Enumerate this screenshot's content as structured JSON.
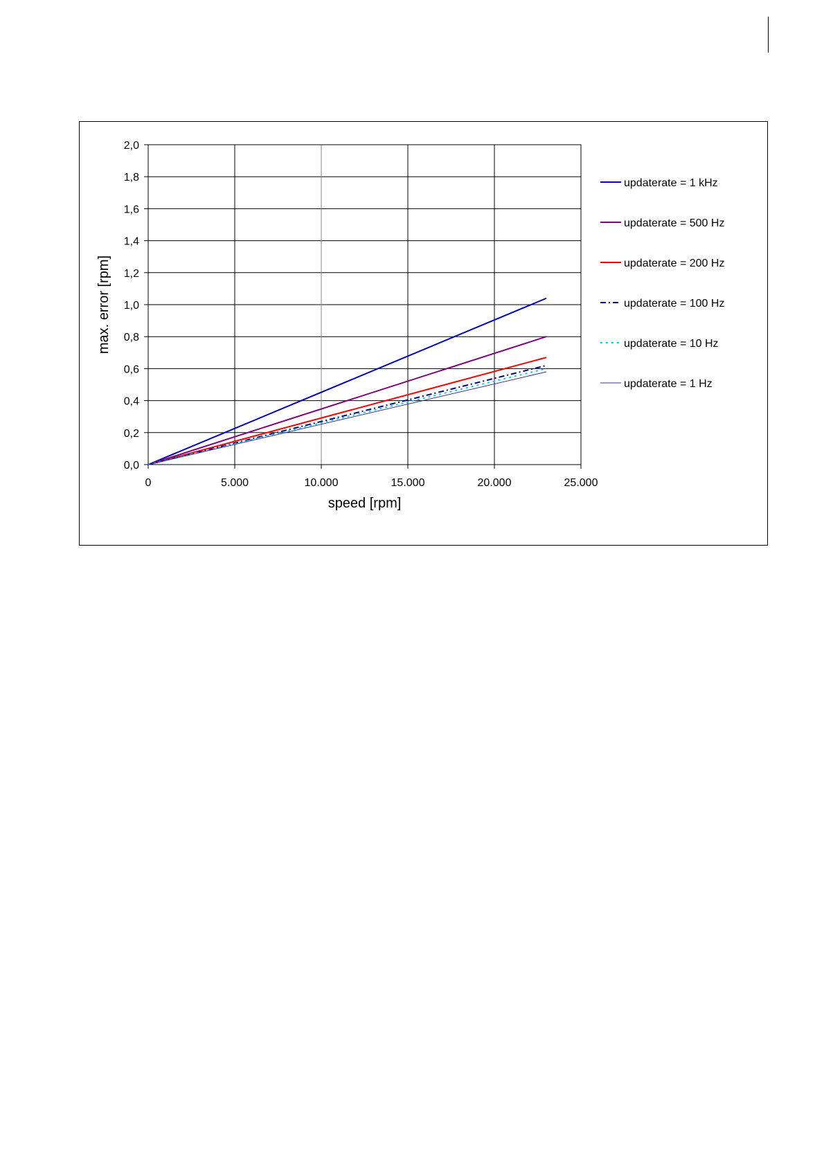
{
  "chart_data": {
    "type": "line",
    "title": "",
    "xlabel": "speed [rpm]",
    "ylabel": "max. error [rpm]",
    "xlim": [
      0,
      25000
    ],
    "ylim": [
      0,
      2.0
    ],
    "x_ticks": [
      "0",
      "5.000",
      "10.000",
      "15.000",
      "20.000",
      "25.000"
    ],
    "y_ticks": [
      "0,0",
      "0,2",
      "0,4",
      "0,6",
      "0,8",
      "1,0",
      "1,2",
      "1,4",
      "1,6",
      "1,8",
      "2,0"
    ],
    "grid": true,
    "legend_position": "right",
    "series": [
      {
        "name": "updaterate = 1 kHz",
        "color": "#0000cc",
        "dash": "solid",
        "points": [
          [
            0,
            0
          ],
          [
            23000,
            1.04
          ]
        ]
      },
      {
        "name": "updaterate = 500 Hz",
        "color": "#7f007f",
        "dash": "solid",
        "points": [
          [
            0,
            0
          ],
          [
            23000,
            0.8
          ]
        ]
      },
      {
        "name": "updaterate = 200 Hz",
        "color": "#ff0000",
        "dash": "solid",
        "points": [
          [
            0,
            0
          ],
          [
            23000,
            0.67
          ]
        ]
      },
      {
        "name": "updaterate = 100 Hz",
        "color": "#000080",
        "dash": "dashdot",
        "points": [
          [
            0,
            0
          ],
          [
            23000,
            0.62
          ]
        ]
      },
      {
        "name": "updaterate = 10 Hz",
        "color": "#00ccff",
        "dash": "dotted",
        "points": [
          [
            0,
            0
          ],
          [
            23000,
            0.6
          ]
        ]
      },
      {
        "name": "updaterate = 1 Hz",
        "color": "#333399",
        "dash": "thin",
        "points": [
          [
            0,
            0
          ],
          [
            23000,
            0.58
          ]
        ]
      }
    ]
  }
}
